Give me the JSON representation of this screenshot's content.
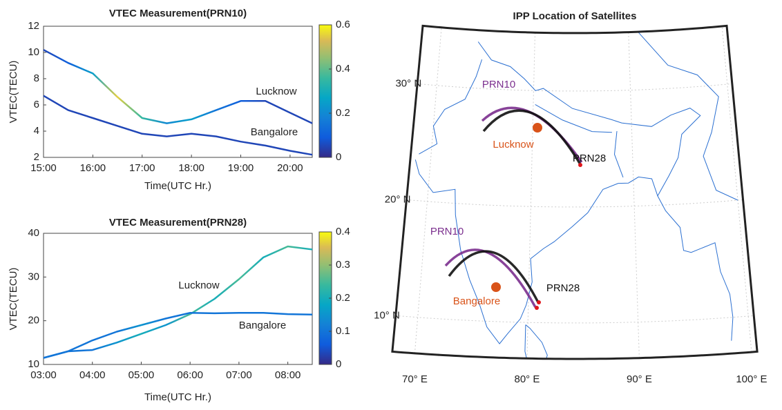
{
  "chart_data": [
    {
      "type": "line",
      "title": "VTEC Measurement(PRN10)",
      "x_label": "Time(UTC Hr.)",
      "y_label": "VTEC(TECU)",
      "x": [
        15,
        15.5,
        16,
        16.5,
        17,
        17.5,
        18,
        18.5,
        19,
        19.5,
        20,
        20.45
      ],
      "series": [
        {
          "name": "Lucknow",
          "values": [
            10.2,
            9.2,
            8.4,
            6.6,
            5.0,
            4.6,
            4.9,
            5.6,
            6.3,
            6.3,
            5.4,
            4.6
          ],
          "color_values": [
            0.05,
            0.1,
            0.25,
            0.55,
            0.35,
            0.2,
            0.25,
            0.15,
            0.1,
            0.05,
            0.05,
            0.05
          ]
        },
        {
          "name": "Bangalore",
          "values": [
            6.7,
            5.6,
            5.0,
            4.4,
            3.8,
            3.6,
            3.8,
            3.6,
            3.2,
            2.9,
            2.5,
            2.2
          ],
          "color_values": [
            0.05,
            0.05,
            0.05,
            0.05,
            0.05,
            0.05,
            0.05,
            0.05,
            0.05,
            0.05,
            0.05,
            0.05
          ]
        }
      ],
      "xlim": [
        15,
        20.45
      ],
      "xticks": [
        {
          "value": 15,
          "label": "15:00"
        },
        {
          "value": 16,
          "label": "16:00"
        },
        {
          "value": 17,
          "label": "17:00"
        },
        {
          "value": 18,
          "label": "18:00"
        },
        {
          "value": 19,
          "label": "19:00"
        },
        {
          "value": 20,
          "label": "20:00"
        }
      ],
      "ylim": [
        2,
        12
      ],
      "yticks": [
        2,
        4,
        6,
        8,
        10,
        12
      ],
      "colormap": "parula",
      "clim": [
        0,
        0.6
      ],
      "cticks": [
        0,
        0.2,
        0.4,
        0.6
      ]
    },
    {
      "type": "line",
      "title": "VTEC Measurement(PRN28)",
      "x_label": "Time(UTC Hr.)",
      "y_label": "VTEC(TECU)",
      "x": [
        3,
        3.5,
        4,
        4.5,
        5,
        5.5,
        6,
        6.5,
        7,
        7.5,
        8,
        8.5
      ],
      "series": [
        {
          "name": "Lucknow",
          "values": [
            11.5,
            13,
            13.3,
            15,
            17,
            19,
            21.5,
            25,
            29.5,
            34.5,
            37,
            36.3
          ],
          "color_values": [
            0.1,
            0.1,
            0.1,
            0.15,
            0.2,
            0.15,
            0.25,
            0.2,
            0.25,
            0.2,
            0.25,
            0.2
          ]
        },
        {
          "name": "Bangalore",
          "values": [
            11.5,
            13,
            15.5,
            17.5,
            19,
            20.5,
            21.8,
            21.7,
            21.8,
            21.8,
            21.5,
            21.4
          ],
          "color_values": [
            0.1,
            0.1,
            0.1,
            0.1,
            0.15,
            0.1,
            0.1,
            0.1,
            0.1,
            0.1,
            0.1,
            0.1
          ]
        }
      ],
      "xlim": [
        3,
        8.5
      ],
      "xticks": [
        {
          "value": 3,
          "label": "03:00"
        },
        {
          "value": 4,
          "label": "04:00"
        },
        {
          "value": 5,
          "label": "05:00"
        },
        {
          "value": 6,
          "label": "06:00"
        },
        {
          "value": 7,
          "label": "07:00"
        },
        {
          "value": 8,
          "label": "08:00"
        }
      ],
      "ylim": [
        10,
        40
      ],
      "yticks": [
        10,
        20,
        30,
        40
      ],
      "colormap": "parula",
      "clim": [
        0,
        0.4
      ],
      "cticks": [
        0,
        0.1,
        0.2,
        0.3,
        0.4
      ]
    },
    {
      "type": "map",
      "title": "IPP Location of Satellites",
      "lat_ticks": [
        {
          "value": 10,
          "label": "10° N"
        },
        {
          "value": 20,
          "label": "20° N"
        },
        {
          "value": 30,
          "label": "30° N"
        }
      ],
      "lon_ticks": [
        {
          "value": 70,
          "label": "70° E"
        },
        {
          "value": 80,
          "label": "80° E"
        },
        {
          "value": 90,
          "label": "90° E"
        },
        {
          "value": 100,
          "label": "100° E"
        }
      ],
      "regions": [
        {
          "city": "Lucknow",
          "tracks": [
            "PRN10",
            "PRN28"
          ]
        },
        {
          "city": "Bangalore",
          "tracks": [
            "PRN10",
            "PRN28"
          ]
        }
      ]
    }
  ]
}
